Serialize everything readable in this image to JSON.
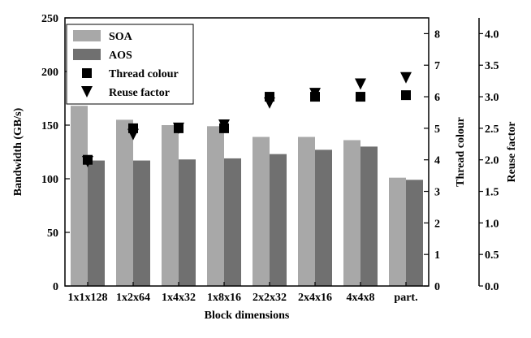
{
  "chart_data": {
    "type": "bar",
    "xlabel": "Block dimensions",
    "ylabel": "Bandwidth (GB/s)",
    "y2label": "Thread colour",
    "y3label": "Reuse factor",
    "categories": [
      "1x1x128",
      "1x2x64",
      "1x4x32",
      "1x8x16",
      "2x2x32",
      "2x4x16",
      "4x4x8",
      "part."
    ],
    "ylim": [
      0,
      250
    ],
    "yticks": [
      "0",
      "50",
      "100",
      "150",
      "200",
      "250"
    ],
    "y2lim": [
      0,
      8.5
    ],
    "y2ticks": [
      "0",
      "1",
      "2",
      "3",
      "4",
      "5",
      "6",
      "7",
      "8"
    ],
    "y3lim": [
      0,
      4.25
    ],
    "y3ticks": [
      "0.0",
      "0.5",
      "1.0",
      "1.5",
      "2.0",
      "2.5",
      "3.0",
      "3.5",
      "4.0"
    ],
    "legend_position": "top-left",
    "series": [
      {
        "name": "SOA",
        "kind": "bar",
        "axis": "left",
        "color": "#a8a8a8",
        "values": [
          168,
          155,
          150,
          149,
          139,
          139,
          136,
          101
        ]
      },
      {
        "name": "AOS",
        "kind": "bar",
        "axis": "left",
        "color": "#707070",
        "values": [
          117,
          117,
          118,
          119,
          123,
          127,
          130,
          99
        ]
      },
      {
        "name": "Thread colour",
        "kind": "marker",
        "marker": "square",
        "axis": "right1",
        "color": "#000000",
        "values": [
          4.0,
          5.0,
          5.0,
          5.0,
          6.0,
          6.0,
          6.0,
          6.05
        ]
      },
      {
        "name": "Reuse factor",
        "kind": "marker",
        "marker": "triangle-down",
        "axis": "right2",
        "color": "#000000",
        "values": [
          1.97,
          2.4,
          2.5,
          2.55,
          2.9,
          3.05,
          3.2,
          3.3
        ]
      }
    ]
  }
}
